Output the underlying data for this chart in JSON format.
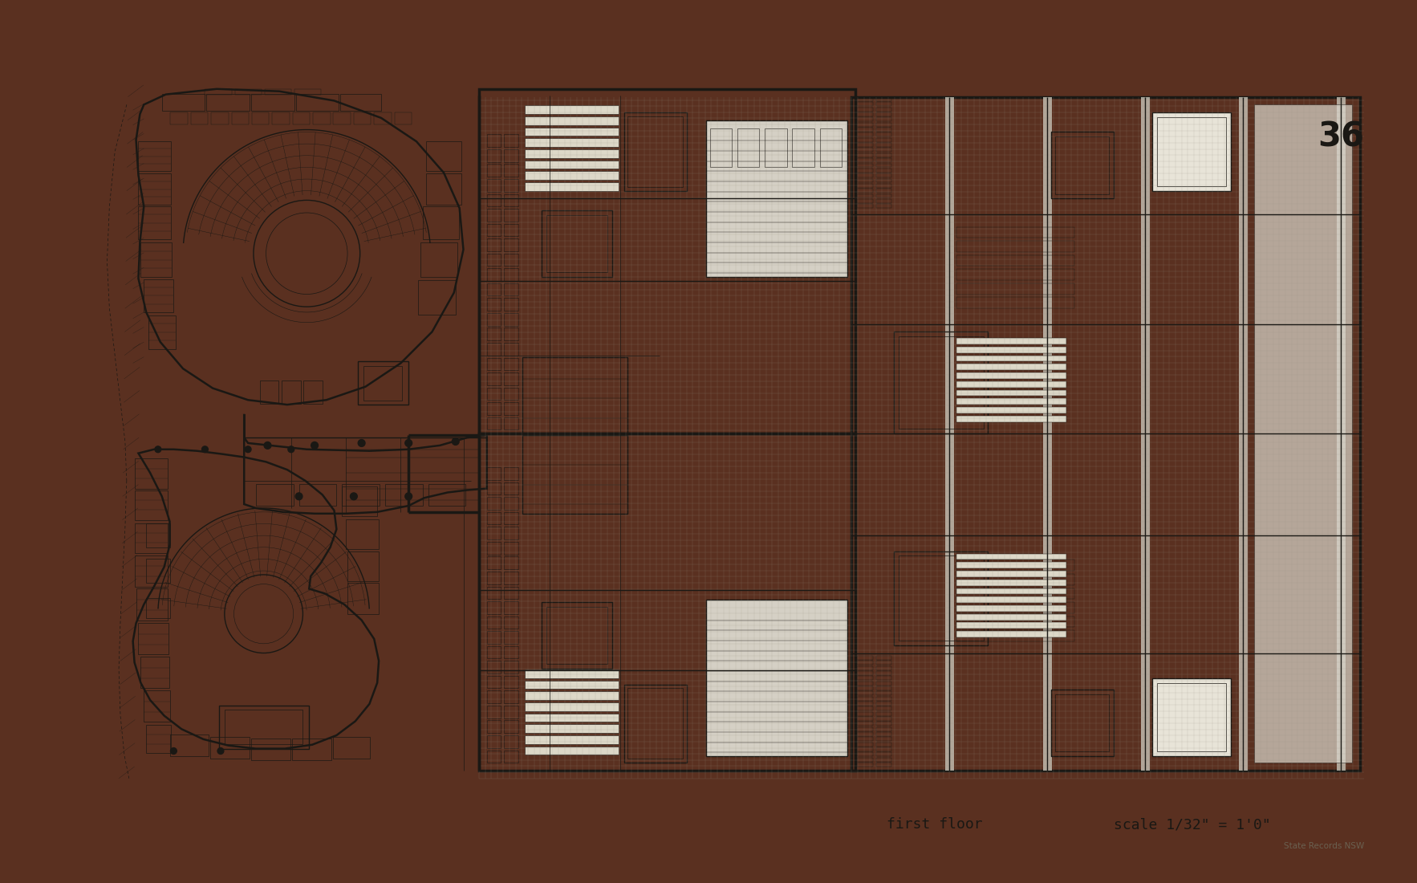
{
  "bg_color": "#f0ece0",
  "paper_color": "#f0ece0",
  "line_color": "#1a1814",
  "grid_line_color": "#9a9488",
  "border_color": "#5a3020",
  "page_number": "36",
  "label_floor": "first floor",
  "label_scale": "scale 1/32\" = 1'0\"",
  "label_records": "State Records NSW",
  "fig_width": 17.66,
  "fig_height": 11.0,
  "dpi": 100
}
